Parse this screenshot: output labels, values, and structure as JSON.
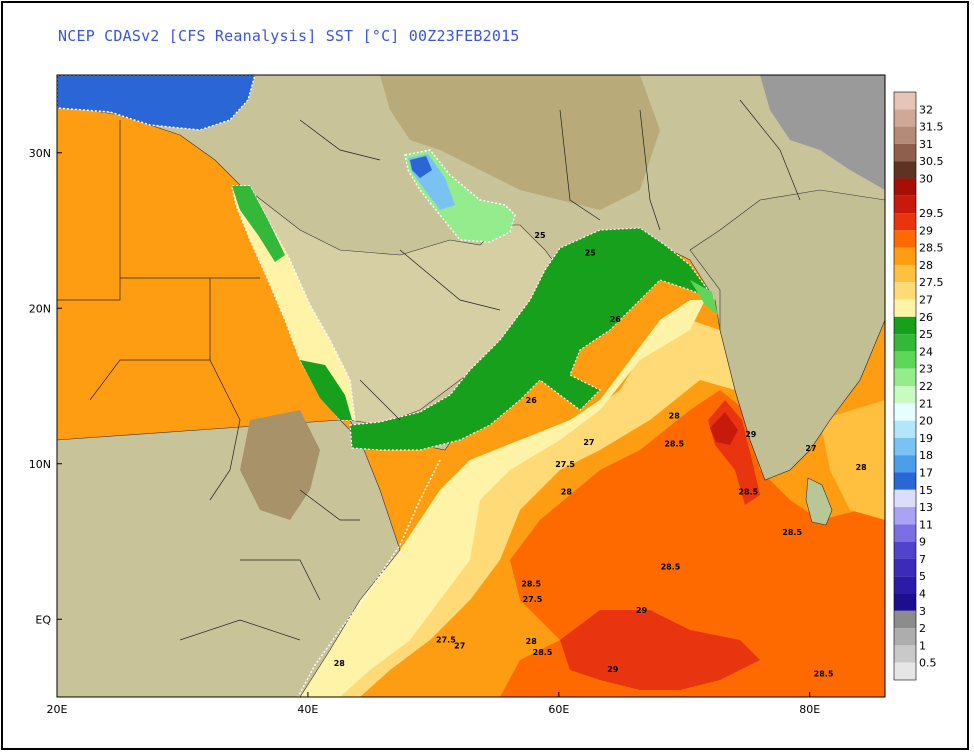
{
  "title": "NCEP CDASv2 [CFS Reanalysis] SST [°C] 00Z23FEB2015",
  "map": {
    "lon_range": [
      20,
      86
    ],
    "lat_range": [
      -5,
      35
    ],
    "lon_ticks": [
      {
        "value": 20,
        "label": "20E"
      },
      {
        "value": 40,
        "label": "40E"
      },
      {
        "value": 60,
        "label": "60E"
      },
      {
        "value": 80,
        "label": "80E"
      }
    ],
    "lat_ticks": [
      {
        "value": 30,
        "label": "30N"
      },
      {
        "value": 20,
        "label": "20N"
      },
      {
        "value": 10,
        "label": "10N"
      },
      {
        "value": 0,
        "label": "EQ"
      }
    ],
    "contour_labels": [
      {
        "lon": 58.5,
        "lat": 24.7,
        "text": "25"
      },
      {
        "lon": 62.5,
        "lat": 23.6,
        "text": "25"
      },
      {
        "lon": 64.5,
        "lat": 19.3,
        "text": "26"
      },
      {
        "lon": 57.8,
        "lat": 14.1,
        "text": "26"
      },
      {
        "lon": 69.2,
        "lat": 13.1,
        "text": "28"
      },
      {
        "lon": 62.4,
        "lat": 11.4,
        "text": "27"
      },
      {
        "lon": 69.2,
        "lat": 11.3,
        "text": "28.5"
      },
      {
        "lon": 75.3,
        "lat": 11.9,
        "text": "29"
      },
      {
        "lon": 80.1,
        "lat": 11.0,
        "text": "27"
      },
      {
        "lon": 84.1,
        "lat": 9.8,
        "text": "28"
      },
      {
        "lon": 60.5,
        "lat": 10.0,
        "text": "27.5"
      },
      {
        "lon": 60.6,
        "lat": 8.2,
        "text": "28"
      },
      {
        "lon": 75.1,
        "lat": 8.2,
        "text": "28.5"
      },
      {
        "lon": 78.6,
        "lat": 5.6,
        "text": "28.5"
      },
      {
        "lon": 68.9,
        "lat": 3.4,
        "text": "28.5"
      },
      {
        "lon": 57.8,
        "lat": 2.3,
        "text": "28.5"
      },
      {
        "lon": 57.9,
        "lat": 1.3,
        "text": "27.5"
      },
      {
        "lon": 66.6,
        "lat": 0.6,
        "text": "29"
      },
      {
        "lon": 51.0,
        "lat": -1.3,
        "text": "27.5"
      },
      {
        "lon": 52.1,
        "lat": -1.7,
        "text": "27"
      },
      {
        "lon": 57.8,
        "lat": -1.4,
        "text": "28"
      },
      {
        "lon": 58.7,
        "lat": -2.1,
        "text": "28.5"
      },
      {
        "lon": 42.5,
        "lat": -2.8,
        "text": "28"
      },
      {
        "lon": 64.3,
        "lat": -3.2,
        "text": "29"
      },
      {
        "lon": 81.1,
        "lat": -3.5,
        "text": "28.5"
      }
    ]
  },
  "legend": [
    {
      "label": "32",
      "color": "#e6c4b8"
    },
    {
      "label": "31.5",
      "color": "#cfa898"
    },
    {
      "label": "31",
      "color": "#b48a79"
    },
    {
      "label": "30.5",
      "color": "#8e5f4d"
    },
    {
      "label": "30",
      "color": "#5e3323"
    },
    {
      "label": "",
      "color": "#a50f08"
    },
    {
      "label": "29.5",
      "color": "#c81a0a"
    },
    {
      "label": "29",
      "color": "#e8340f"
    },
    {
      "label": "28.5",
      "color": "#ff6a00"
    },
    {
      "label": "28",
      "color": "#ff9d12"
    },
    {
      "label": "27.5",
      "color": "#ffc03f"
    },
    {
      "label": "27",
      "color": "#ffda77"
    },
    {
      "label": "26",
      "color": "#fff3a8"
    },
    {
      "label": "25",
      "color": "#16a01b"
    },
    {
      "label": "24",
      "color": "#34b83a"
    },
    {
      "label": "23",
      "color": "#5dd65a"
    },
    {
      "label": "22",
      "color": "#94ec8c"
    },
    {
      "label": "21",
      "color": "#c8fbc1"
    },
    {
      "label": "20",
      "color": "#e6ffff"
    },
    {
      "label": "19",
      "color": "#b4e6fb"
    },
    {
      "label": "18",
      "color": "#7bc2f4"
    },
    {
      "label": "17",
      "color": "#4a9eea"
    },
    {
      "label": "15",
      "color": "#2b66d6"
    },
    {
      "label": "13",
      "color": "#dcdcfb"
    },
    {
      "label": "11",
      "color": "#a9a2f5"
    },
    {
      "label": "9",
      "color": "#7b70e3"
    },
    {
      "label": "7",
      "color": "#5144cc"
    },
    {
      "label": "5",
      "color": "#3a2bbb"
    },
    {
      "label": "4",
      "color": "#2a1ca8"
    },
    {
      "label": "3",
      "color": "#1c0f8f"
    },
    {
      "label": "2",
      "color": "#8c8c8c"
    },
    {
      "label": "1",
      "color": "#adadad"
    },
    {
      "label": "0.5",
      "color": "#c9c9c9"
    },
    {
      "label": "",
      "color": "#e6e6e6"
    }
  ]
}
